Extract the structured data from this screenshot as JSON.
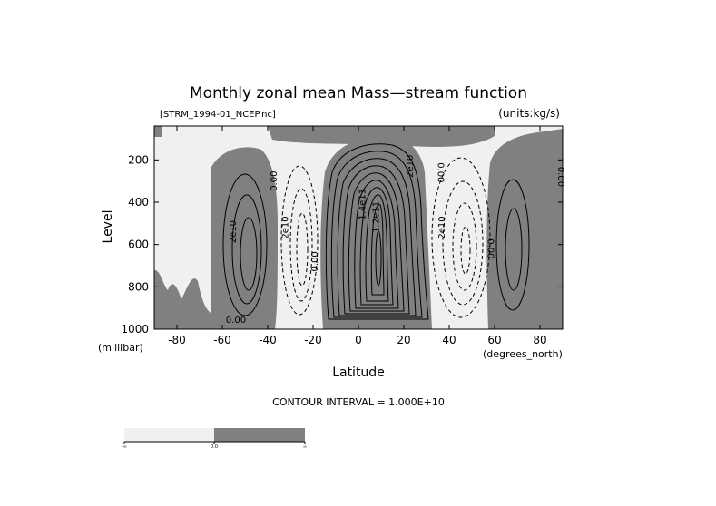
{
  "chart_data": {
    "type": "contour",
    "title": "Monthly zonal mean Mass—stream function",
    "subtitle_left": "[STRM_1994-01_NCEP.nc]",
    "subtitle_right": "(units:kg/s)",
    "xlabel": "Latitude",
    "xunit": "(degrees_north)",
    "ylabel": "Level",
    "yunit": "(millibar)",
    "xlim": [
      -90,
      90
    ],
    "ylim": [
      1000,
      40
    ],
    "x_ticks": [
      -80,
      -60,
      -40,
      -20,
      0,
      20,
      40,
      60,
      80
    ],
    "y_ticks": [
      200,
      400,
      600,
      800,
      1000
    ],
    "contour_interval_text": "CONTOUR INTERVAL = 1.000E+10",
    "shading": {
      "negative_color": "#f0f0f0",
      "positive_color": "#808080"
    },
    "colorbar": {
      "labels": [
        "-∞",
        "0.0",
        "∞"
      ]
    },
    "contour_labels": [
      {
        "text": "2e10",
        "x": -54,
        "y": 540,
        "rotate": -90
      },
      {
        "text": "0.00",
        "x": -36,
        "y": 300,
        "rotate": -90
      },
      {
        "text": "2e10",
        "x": -31,
        "y": 520,
        "rotate": -90
      },
      {
        "text": "0.00",
        "x": -18,
        "y": 680,
        "rotate": -90
      },
      {
        "text": "1.4e11",
        "x": 3,
        "y": 410,
        "rotate": -90
      },
      {
        "text": "1.2e11",
        "x": 9,
        "y": 470,
        "rotate": -90
      },
      {
        "text": "2e10",
        "x": 24,
        "y": 230,
        "rotate": -90
      },
      {
        "text": "0.00",
        "x": 35,
        "y": 260,
        "rotate": 90
      },
      {
        "text": "2e10",
        "x": 38,
        "y": 520,
        "rotate": -90
      },
      {
        "text": "0.00",
        "x": 57,
        "y": 620,
        "rotate": 90
      },
      {
        "text": "0.00",
        "x": 88,
        "y": 280,
        "rotate": 90
      },
      {
        "text": "0.00",
        "x": -54,
        "y": 970,
        "rotate": 0
      }
    ]
  }
}
